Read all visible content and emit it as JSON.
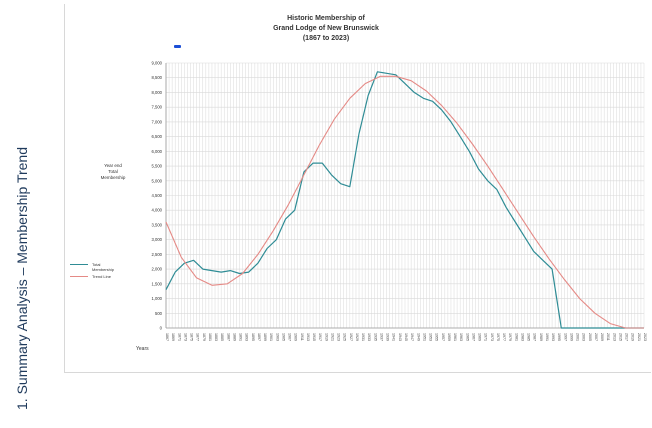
{
  "page": {
    "side_title": "1. Summary Analysis – Membership Trend"
  },
  "chart_data": {
    "type": "line",
    "title_lines": [
      "Historic Membership of",
      "Grand Lodge of New Brunswick",
      "(1867 to 2023)"
    ],
    "xlabel": "Years",
    "ylabel_lines": [
      "Year end",
      "Total",
      "Membership"
    ],
    "ylim": [
      0,
      9000
    ],
    "yticks": [
      0,
      500,
      1000,
      1500,
      2000,
      2500,
      3000,
      3500,
      4000,
      4500,
      5000,
      5500,
      6000,
      6500,
      7000,
      7500,
      8000,
      8500,
      9000
    ],
    "ytick_labels": [
      "0",
      "500",
      "1,000",
      "1,500",
      "2,000",
      "2,500",
      "3,000",
      "3,500",
      "4,000",
      "4,500",
      "5,000",
      "5,500",
      "6,000",
      "6,500",
      "7,000",
      "7,500",
      "8,000",
      "8,500",
      "9,000"
    ],
    "xlim": [
      1867,
      2023
    ],
    "grid": true,
    "legend_position": "left",
    "colors": {
      "total": "#2f8c95",
      "trend": "#e58a86",
      "grid": "#d9d9d9"
    },
    "series": [
      {
        "name": "Total Membership",
        "key": "total",
        "x": [
          1867,
          1870,
          1873,
          1876,
          1879,
          1882,
          1885,
          1888,
          1891,
          1894,
          1897,
          1900,
          1903,
          1906,
          1909,
          1912,
          1915,
          1918,
          1921,
          1924,
          1927,
          1930,
          1933,
          1936,
          1939,
          1942,
          1945,
          1948,
          1951,
          1954,
          1957,
          1960,
          1963,
          1966,
          1969,
          1972,
          1975,
          1978,
          1981,
          1984,
          1987,
          1990,
          1993,
          1996,
          1999,
          2002,
          2005,
          2008,
          2011,
          2014,
          2017,
          2018,
          2020,
          2023
        ],
        "y": [
          1300,
          1900,
          2200,
          2300,
          2000,
          1950,
          1900,
          1950,
          1850,
          1900,
          2200,
          2700,
          3000,
          3700,
          4000,
          5300,
          5600,
          5600,
          5200,
          4900,
          4800,
          6600,
          7900,
          8700,
          8650,
          8600,
          8300,
          8000,
          7800,
          7700,
          7400,
          7000,
          6500,
          6000,
          5400,
          5000,
          4700,
          4100,
          3600,
          3100,
          2600,
          2300,
          2000,
          0,
          0,
          0,
          0,
          0,
          0,
          0,
          0,
          0,
          0,
          0
        ]
      },
      {
        "name": "Trend Line",
        "key": "trend",
        "x": [
          1867,
          1872,
          1877,
          1882,
          1887,
          1892,
          1897,
          1902,
          1907,
          1912,
          1917,
          1922,
          1927,
          1932,
          1937,
          1942,
          1947,
          1952,
          1957,
          1962,
          1967,
          1972,
          1977,
          1982,
          1987,
          1992,
          1997,
          2002,
          2007,
          2012,
          2017,
          2023
        ],
        "y": [
          3600,
          2400,
          1700,
          1450,
          1500,
          1850,
          2500,
          3300,
          4200,
          5200,
          6200,
          7100,
          7800,
          8300,
          8550,
          8550,
          8400,
          8050,
          7550,
          6950,
          6250,
          5500,
          4700,
          3900,
          3100,
          2350,
          1650,
          1000,
          500,
          150,
          0,
          0
        ]
      }
    ]
  }
}
